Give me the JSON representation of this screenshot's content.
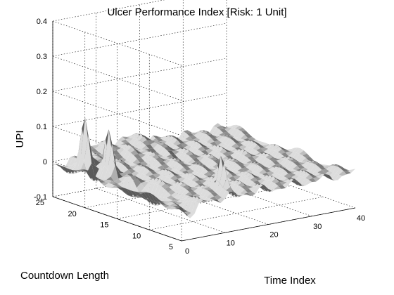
{
  "chart_data": {
    "type": "surface",
    "title": "Ulcer Performance Index [Risk: 1 Unit]",
    "xlabel": "Time Index",
    "ylabel": "Countdown Length",
    "zlabel": "UPI",
    "xlim": [
      0,
      40
    ],
    "ylim": [
      5,
      25
    ],
    "zlim": [
      -0.1,
      0.4
    ],
    "x_ticks": [
      0,
      10,
      20,
      30,
      40
    ],
    "y_ticks": [
      5,
      10,
      15,
      20,
      25
    ],
    "z_ticks": [
      -0.1,
      0,
      0.1,
      0.2,
      0.3,
      0.4
    ],
    "z_tick_labels": [
      "-0.1",
      "0",
      "0.1",
      "0.2",
      "0.3",
      "0.4"
    ],
    "grid": true,
    "colormap": "gray",
    "surface_color": "#a9a9a9",
    "baseline": 0,
    "ridge": {
      "x_start": 3,
      "z_base": -0.03,
      "z_plateau": 0.02
    },
    "spikes": [
      {
        "x": 3,
        "y": 22,
        "z": 0.17
      },
      {
        "x": 4,
        "y": 19,
        "z": 0.14
      },
      {
        "x": 12,
        "y": 7,
        "z": 0.1
      },
      {
        "x": 3,
        "y": 15,
        "z": 0.04
      }
    ]
  }
}
